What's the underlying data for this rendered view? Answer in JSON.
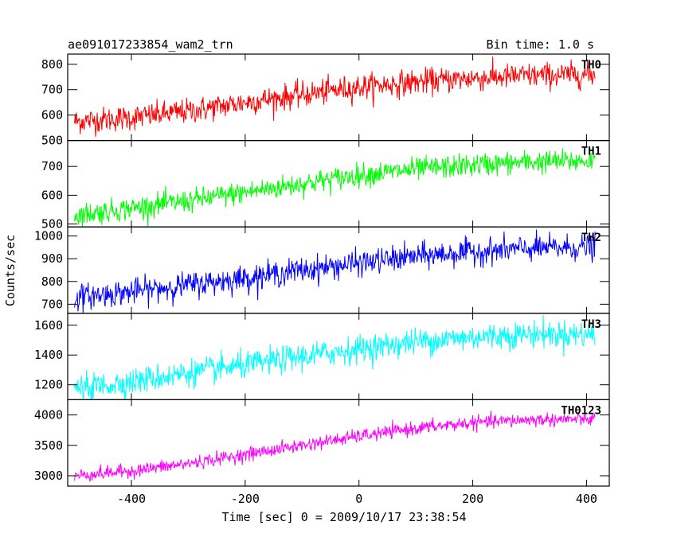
{
  "header": {
    "title": "ae091017233854_wam2_trn",
    "bin_time": "Bin time: 1.0 s"
  },
  "axes": {
    "xlabel": "Time [sec] 0 = 2009/10/17 23:38:54",
    "ylabel": "Counts/sec"
  },
  "chart_data": {
    "type": "line",
    "title": "ae091017233854_wam2_trn",
    "subtitle": "Bin time: 1.0 s",
    "xlabel": "Time [sec] 0 = 2009/10/17 23:38:54",
    "ylabel": "Counts/sec",
    "xlim": [
      -512,
      440
    ],
    "x_ticks": [
      -400,
      -200,
      0,
      200,
      400
    ],
    "x_data_range": [
      -500,
      415
    ],
    "grid": false,
    "legend": "none",
    "panels": [
      {
        "name": "TH0",
        "color": "#ff0000",
        "ylim": [
          500,
          840
        ],
        "y_ticks": [
          500,
          600,
          700,
          800
        ],
        "trend": [
          [
            -500,
            575
          ],
          [
            -400,
            590
          ],
          [
            -300,
            615
          ],
          [
            -200,
            650
          ],
          [
            -100,
            680
          ],
          [
            0,
            710
          ],
          [
            100,
            730
          ],
          [
            200,
            745
          ],
          [
            300,
            755
          ],
          [
            415,
            760
          ]
        ],
        "noise_sd": 25
      },
      {
        "name": "TH1",
        "color": "#00ff00",
        "ylim": [
          490,
          790
        ],
        "y_ticks": [
          500,
          600,
          700
        ],
        "trend": [
          [
            -500,
            530
          ],
          [
            -400,
            555
          ],
          [
            -300,
            580
          ],
          [
            -200,
            610
          ],
          [
            -100,
            640
          ],
          [
            0,
            670
          ],
          [
            100,
            690
          ],
          [
            200,
            705
          ],
          [
            300,
            715
          ],
          [
            415,
            720
          ]
        ],
        "noise_sd": 20
      },
      {
        "name": "TH2",
        "color": "#0000ff",
        "ylim": [
          660,
          1040
        ],
        "y_ticks": [
          700,
          800,
          900,
          1000
        ],
        "trend": [
          [
            -500,
            730
          ],
          [
            -400,
            755
          ],
          [
            -300,
            785
          ],
          [
            -200,
            815
          ],
          [
            -100,
            850
          ],
          [
            0,
            880
          ],
          [
            100,
            910
          ],
          [
            200,
            930
          ],
          [
            300,
            945
          ],
          [
            415,
            950
          ]
        ],
        "noise_sd": 28
      },
      {
        "name": "TH3",
        "color": "#00ffff",
        "ylim": [
          1100,
          1680
        ],
        "y_ticks": [
          1200,
          1400,
          1600
        ],
        "trend": [
          [
            -500,
            1170
          ],
          [
            -400,
            1220
          ],
          [
            -300,
            1280
          ],
          [
            -200,
            1330
          ],
          [
            -100,
            1390
          ],
          [
            0,
            1440
          ],
          [
            100,
            1490
          ],
          [
            200,
            1520
          ],
          [
            300,
            1540
          ],
          [
            415,
            1540
          ]
        ],
        "noise_sd": 45
      },
      {
        "name": "TH0123",
        "color": "#ff00ff",
        "ylim": [
          2830,
          4250
        ],
        "y_ticks": [
          3000,
          3500,
          4000
        ],
        "trend": [
          [
            -500,
            3000
          ],
          [
            -400,
            3080
          ],
          [
            -300,
            3200
          ],
          [
            -200,
            3350
          ],
          [
            -100,
            3500
          ],
          [
            0,
            3650
          ],
          [
            100,
            3780
          ],
          [
            200,
            3870
          ],
          [
            300,
            3920
          ],
          [
            415,
            3930
          ]
        ],
        "noise_sd": 55
      }
    ]
  }
}
